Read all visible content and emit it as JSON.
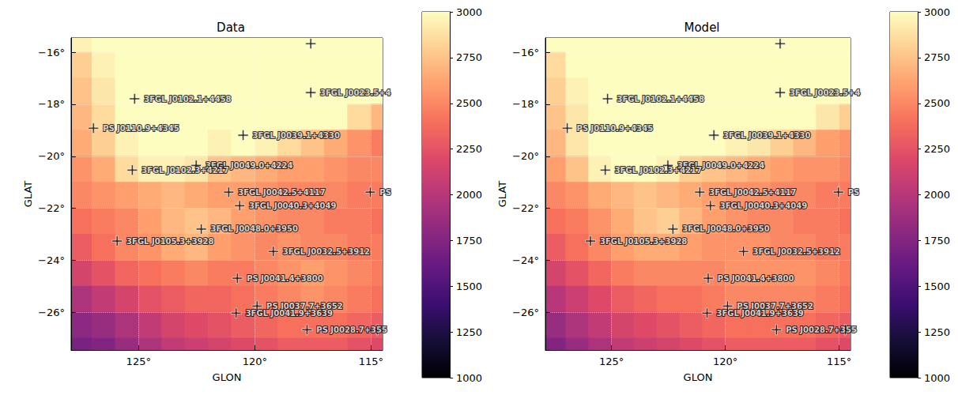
{
  "chart_data": [
    {
      "type": "heatmap",
      "title": "Data",
      "x_label": "GLON",
      "y_label": "GLAT",
      "xlim": [
        127.9,
        114.5
      ],
      "ylim": [
        -27.45,
        -15.45
      ],
      "xticks": [
        {
          "value": 125,
          "label": "125°"
        },
        {
          "value": 120,
          "label": "120°"
        },
        {
          "value": 115,
          "label": "115°"
        }
      ],
      "yticks": [
        {
          "value": -16,
          "label": "−16°"
        },
        {
          "value": -18,
          "label": "−18°"
        },
        {
          "value": -20,
          "label": "−20°"
        },
        {
          "value": -22,
          "label": "−22°"
        },
        {
          "value": -24,
          "label": "−24°"
        },
        {
          "value": -26,
          "label": "−26°"
        }
      ],
      "grid": true,
      "marker": "plus",
      "cells": {
        "lon": [
          127.5,
          126.5,
          125.5,
          124.5,
          123.5,
          122.5,
          121.5,
          120.5,
          119.5,
          118.5,
          117.5,
          116.5,
          115.5,
          114.5
        ],
        "lat": [
          -15.5,
          -16.5,
          -17.5,
          -18.5,
          -19.5,
          -20.5,
          -21.5,
          -22.5,
          -23.5,
          -24.5,
          -25.5,
          -26.5,
          -27.5
        ],
        "values": [
          [
            2950,
            3000,
            3050,
            3100,
            3100,
            3100,
            3100,
            3100,
            3100,
            3100,
            3100,
            3100,
            3100,
            3100
          ],
          [
            2800,
            2950,
            3050,
            3100,
            3100,
            3100,
            3100,
            3100,
            3100,
            3100,
            3100,
            3100,
            3100,
            3050
          ],
          [
            2750,
            2900,
            3050,
            3100,
            3100,
            3100,
            3100,
            3100,
            3100,
            3100,
            3100,
            3100,
            3050,
            3000
          ],
          [
            2700,
            2850,
            3000,
            3100,
            3100,
            3100,
            3100,
            3100,
            3100,
            3100,
            3050,
            3000,
            2850,
            2700
          ],
          [
            2650,
            2800,
            2950,
            3050,
            3100,
            3050,
            2950,
            3000,
            2950,
            2850,
            2750,
            2650,
            2550,
            2450
          ],
          [
            2550,
            2650,
            2850,
            2950,
            2950,
            2900,
            2750,
            2700,
            2650,
            2600,
            2600,
            2550,
            2500,
            2500
          ],
          [
            2500,
            2550,
            2600,
            2650,
            2700,
            2650,
            2600,
            2600,
            2550,
            2500,
            2500,
            2500,
            2450,
            2450
          ],
          [
            2400,
            2450,
            2500,
            2600,
            2700,
            2750,
            2700,
            2600,
            2550,
            2500,
            2500,
            2450,
            2450,
            2400
          ],
          [
            2300,
            2400,
            2500,
            2550,
            2650,
            2700,
            2600,
            2550,
            2500,
            2550,
            2500,
            2500,
            2450,
            2450
          ],
          [
            2150,
            2250,
            2350,
            2400,
            2450,
            2500,
            2450,
            2450,
            2500,
            2550,
            2600,
            2550,
            2500,
            2450
          ],
          [
            1950,
            2050,
            2150,
            2250,
            2300,
            2350,
            2350,
            2400,
            2450,
            2500,
            2550,
            2500,
            2450,
            2400
          ],
          [
            1800,
            1850,
            1950,
            2050,
            2150,
            2200,
            2250,
            2300,
            2350,
            2400,
            2400,
            2400,
            2350,
            2300
          ],
          [
            1700,
            1750,
            1850,
            1950,
            2050,
            2100,
            2150,
            2200,
            2250,
            2300,
            2300,
            2300,
            2250,
            2200
          ]
        ]
      },
      "colorbar": {
        "range": [
          1000,
          3000
        ],
        "ticks": [
          1000,
          1250,
          1500,
          1750,
          2000,
          2250,
          2500,
          2750,
          3000
        ]
      },
      "sources": [
        {
          "name": null,
          "glon": 117.59,
          "glat": -15.67
        },
        {
          "name": "3FGL J0102.1+4458",
          "glon": 125.17,
          "glat": -17.79
        },
        {
          "name": "3FGL J0023.5+4",
          "glon": 117.59,
          "glat": -17.55
        },
        {
          "name": "PS J0110.9+4345",
          "glon": 126.94,
          "glat": -18.92
        },
        {
          "name": "3FGL J0039.1+4330",
          "glon": 120.5,
          "glat": -19.19
        },
        {
          "name": "3FGL J0049.0+4224",
          "glon": 122.52,
          "glat": -20.35
        },
        {
          "name": "3FGL J0102.3+4217",
          "glon": 125.27,
          "glat": -20.53
        },
        {
          "name": "3FGL J0042.5+4117",
          "glon": 121.12,
          "glat": -21.38
        },
        {
          "name": "PS",
          "glon": 115.03,
          "glat": -21.38
        },
        {
          "name": "3FGL J0040.3+4049",
          "glon": 120.65,
          "glat": -21.9
        },
        {
          "name": "3FGL J0048.0+3950",
          "glon": 122.3,
          "glat": -22.8
        },
        {
          "name": "3FGL J0105.3+3928",
          "glon": 125.92,
          "glat": -23.26
        },
        {
          "name": "3FGL J0032.5+3912",
          "glon": 119.2,
          "glat": -23.66
        },
        {
          "name": "PS J0041.4+3800",
          "glon": 120.75,
          "glat": -24.69
        },
        {
          "name": "PS J0037.7+3652",
          "glon": 119.9,
          "glat": -25.76
        },
        {
          "name": "3FGL J0041.9+3639",
          "glon": 120.8,
          "glat": -26.03
        },
        {
          "name": "PS J0028.7+355",
          "glon": 117.75,
          "glat": -26.67
        },
        {
          "name": null,
          "glon": 114.73,
          "glat": -26.67
        }
      ]
    },
    {
      "type": "heatmap",
      "title": "Model",
      "x_label": "GLON",
      "y_label": "GLAT",
      "xlim": [
        127.9,
        114.5
      ],
      "ylim": [
        -27.45,
        -15.45
      ],
      "xticks": [
        {
          "value": 125,
          "label": "125°"
        },
        {
          "value": 120,
          "label": "120°"
        },
        {
          "value": 115,
          "label": "115°"
        }
      ],
      "yticks": [
        {
          "value": -16,
          "label": "−16°"
        },
        {
          "value": -18,
          "label": "−18°"
        },
        {
          "value": -20,
          "label": "−20°"
        },
        {
          "value": -22,
          "label": "−22°"
        },
        {
          "value": -24,
          "label": "−24°"
        },
        {
          "value": -26,
          "label": "−26°"
        }
      ],
      "grid": true,
      "marker": "plus",
      "cells": {
        "lon": [
          127.5,
          126.5,
          125.5,
          124.5,
          123.5,
          122.5,
          121.5,
          120.5,
          119.5,
          118.5,
          117.5,
          116.5,
          115.5,
          114.5
        ],
        "lat": [
          -15.5,
          -16.5,
          -17.5,
          -18.5,
          -19.5,
          -20.5,
          -21.5,
          -22.5,
          -23.5,
          -24.5,
          -25.5,
          -26.5,
          -27.5
        ],
        "values": [
          [
            3000,
            3050,
            3100,
            3100,
            3100,
            3100,
            3100,
            3100,
            3100,
            3100,
            3100,
            3100,
            3100,
            3100
          ],
          [
            2850,
            3000,
            3100,
            3100,
            3100,
            3100,
            3100,
            3100,
            3100,
            3100,
            3100,
            3100,
            3100,
            3100
          ],
          [
            2800,
            2950,
            3100,
            3100,
            3100,
            3100,
            3100,
            3100,
            3100,
            3100,
            3100,
            3100,
            3100,
            3050
          ],
          [
            2750,
            2900,
            3050,
            3100,
            3100,
            3100,
            3100,
            3100,
            3100,
            3100,
            3050,
            3000,
            2900,
            2800
          ],
          [
            2700,
            2900,
            3000,
            3050,
            3050,
            3050,
            3000,
            3000,
            2950,
            2900,
            2800,
            2700,
            2600,
            2550
          ],
          [
            2600,
            2750,
            2950,
            3000,
            3000,
            2950,
            2800,
            2750,
            2700,
            2650,
            2600,
            2550,
            2550,
            2500
          ],
          [
            2500,
            2550,
            2650,
            2700,
            2750,
            2700,
            2650,
            2600,
            2550,
            2550,
            2500,
            2500,
            2450,
            2450
          ],
          [
            2400,
            2450,
            2550,
            2650,
            2750,
            2800,
            2700,
            2600,
            2550,
            2500,
            2500,
            2450,
            2450,
            2400
          ],
          [
            2300,
            2400,
            2500,
            2600,
            2650,
            2650,
            2600,
            2550,
            2550,
            2550,
            2500,
            2500,
            2450,
            2450
          ],
          [
            2150,
            2250,
            2350,
            2450,
            2500,
            2500,
            2500,
            2500,
            2550,
            2550,
            2550,
            2550,
            2500,
            2450
          ],
          [
            2000,
            2100,
            2200,
            2300,
            2350,
            2400,
            2400,
            2450,
            2500,
            2500,
            2500,
            2500,
            2450,
            2400
          ],
          [
            1850,
            1950,
            2050,
            2150,
            2200,
            2250,
            2300,
            2350,
            2400,
            2400,
            2400,
            2400,
            2350,
            2300
          ],
          [
            1750,
            1850,
            1950,
            2050,
            2100,
            2150,
            2200,
            2250,
            2300,
            2300,
            2300,
            2300,
            2250,
            2200
          ]
        ]
      },
      "colorbar": {
        "range": [
          1000,
          3000
        ],
        "ticks": [
          1000,
          1250,
          1500,
          1750,
          2000,
          2250,
          2500,
          2750,
          3000
        ]
      },
      "sources": [
        {
          "name": null,
          "glon": 117.59,
          "glat": -15.67
        },
        {
          "name": "3FGL J0102.1+4458",
          "glon": 125.17,
          "glat": -17.79
        },
        {
          "name": "3FGL J0023.5+4",
          "glon": 117.59,
          "glat": -17.55
        },
        {
          "name": "PS J0110.9+4345",
          "glon": 126.94,
          "glat": -18.92
        },
        {
          "name": "3FGL J0039.1+4330",
          "glon": 120.5,
          "glat": -19.19
        },
        {
          "name": "3FGL J0049.0+4224",
          "glon": 122.52,
          "glat": -20.35
        },
        {
          "name": "3FGL J0102.3+4217",
          "glon": 125.27,
          "glat": -20.53
        },
        {
          "name": "3FGL J0042.5+4117",
          "glon": 121.12,
          "glat": -21.38
        },
        {
          "name": "PS",
          "glon": 115.03,
          "glat": -21.38
        },
        {
          "name": "3FGL J0040.3+4049",
          "glon": 120.65,
          "glat": -21.9
        },
        {
          "name": "3FGL J0048.0+3950",
          "glon": 122.3,
          "glat": -22.8
        },
        {
          "name": "3FGL J0105.3+3928",
          "glon": 125.92,
          "glat": -23.26
        },
        {
          "name": "3FGL J0032.5+3912",
          "glon": 119.2,
          "glat": -23.66
        },
        {
          "name": "PS J0041.4+3800",
          "glon": 120.75,
          "glat": -24.69
        },
        {
          "name": "PS J0037.7+3652",
          "glon": 119.9,
          "glat": -25.76
        },
        {
          "name": "3FGL J0041.9+3639",
          "glon": 120.8,
          "glat": -26.03
        },
        {
          "name": "PS J0028.7+355",
          "glon": 117.75,
          "glat": -26.67
        },
        {
          "name": null,
          "glon": 114.73,
          "glat": -26.67
        }
      ]
    }
  ]
}
